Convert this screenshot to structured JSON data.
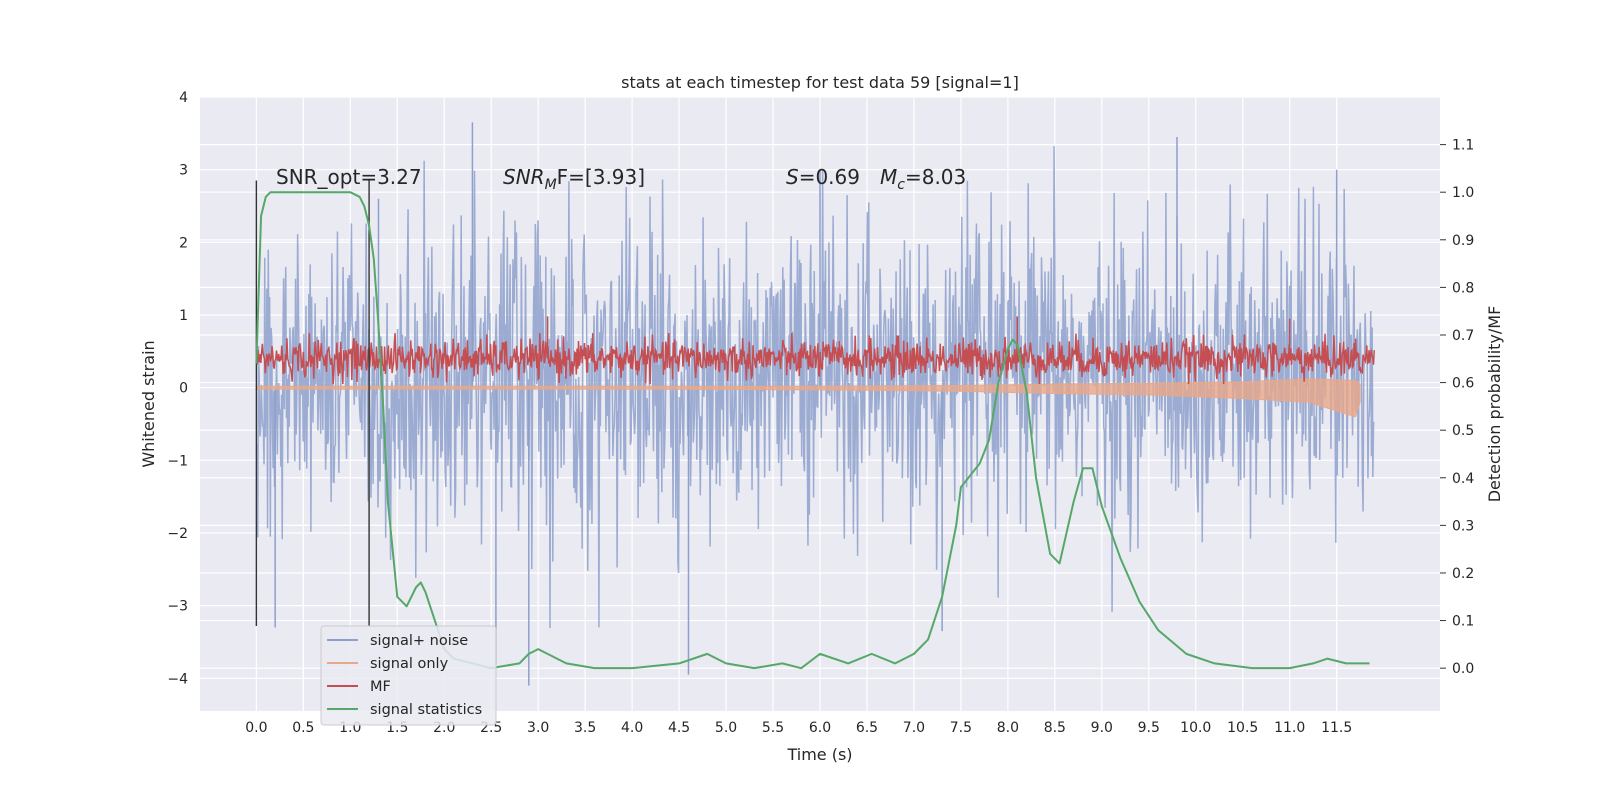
{
  "chart_data": {
    "type": "line",
    "title": "stats at each timestep for test data 59 [signal=1]",
    "xlabel": "Time (s)",
    "ylabel": "Whitened strain",
    "y2label": "Detection probability/MF",
    "xlim": [
      -0.6,
      12.6
    ],
    "ylim": [
      -4.45,
      4.0
    ],
    "y2lim": [
      -0.09,
      1.2
    ],
    "xticks": [
      0.0,
      0.5,
      1.0,
      1.5,
      2.0,
      2.5,
      3.0,
      3.5,
      4.0,
      4.5,
      5.0,
      5.5,
      6.0,
      6.5,
      7.0,
      7.5,
      8.0,
      8.5,
      9.0,
      9.5,
      10.0,
      10.5,
      11.0,
      11.5
    ],
    "xtick_labels": [
      "0.0",
      "0.5",
      "1.0",
      "1.5",
      "2.0",
      "2.5",
      "3.0",
      "3.5",
      "4.0",
      "4.5",
      "5.0",
      "5.5",
      "6.0",
      "6.5",
      "7.0",
      "7.5",
      "8.0",
      "8.5",
      "9.0",
      "9.5",
      "10.0",
      "10.5",
      "11.0",
      "11.5"
    ],
    "yticks": [
      -4,
      -3,
      -2,
      -1,
      0,
      1,
      2,
      3,
      4
    ],
    "ytick_labels": [
      "−4",
      "−3",
      "−2",
      "−1",
      "0",
      "1",
      "2",
      "3",
      "4"
    ],
    "y2ticks": [
      0.0,
      0.1,
      0.2,
      0.3,
      0.4,
      0.5,
      0.6,
      0.7,
      0.8,
      0.9,
      1.0,
      1.1
    ],
    "y2tick_labels": [
      "0.0",
      "0.1",
      "0.2",
      "0.3",
      "0.4",
      "0.5",
      "0.6",
      "0.7",
      "0.8",
      "0.9",
      "1.0",
      "1.1"
    ],
    "grid": true,
    "legend_position": "bottom-left",
    "annotations": {
      "snr_opt": "SNR_opt=3.27",
      "snr_mf_sym": "SNR",
      "snr_mf_sub": "M",
      "snr_mf_rest": "F=[3.93]",
      "s_sym": "S",
      "s_rest": "=0.69",
      "mc_sym": "M",
      "mc_sub": "c",
      "mc_rest": "=8.03"
    },
    "vertical_markers": [
      0.0,
      1.2
    ],
    "series": [
      {
        "name": "signal+ noise",
        "color": "#8da0cb",
        "axis": "left",
        "style": "band",
        "x": [
          0.0,
          1.0,
          2.0,
          3.0,
          4.0,
          5.0,
          6.0,
          7.0,
          8.0,
          9.0,
          10.0,
          11.0,
          11.9
        ],
        "typical_min": [
          -1.6,
          -1.6,
          -1.8,
          -1.7,
          -1.7,
          -1.6,
          -1.6,
          -1.6,
          -1.7,
          -1.6,
          -1.6,
          -1.7,
          -1.6
        ],
        "typical_max": [
          1.8,
          1.9,
          2.0,
          2.0,
          1.9,
          1.9,
          1.9,
          1.9,
          2.0,
          2.0,
          2.0,
          2.0,
          1.9
        ],
        "peaks": [
          [
            0.2,
            -3.3
          ],
          [
            1.3,
            2.6
          ],
          [
            2.3,
            3.65
          ],
          [
            2.55,
            -3.8
          ],
          [
            2.9,
            -4.1
          ],
          [
            4.6,
            -3.95
          ],
          [
            6.0,
            3.0
          ],
          [
            7.3,
            -3.35
          ],
          [
            9.8,
            3.45
          ],
          [
            11.5,
            3.0
          ]
        ]
      },
      {
        "name": "signal only",
        "color": "#e8a88a",
        "axis": "left",
        "style": "band",
        "x": [
          0.0,
          2.0,
          4.0,
          6.0,
          7.5,
          8.5,
          9.5,
          10.5,
          11.2,
          11.7,
          11.75
        ],
        "min": [
          -0.02,
          -0.02,
          -0.02,
          -0.03,
          -0.05,
          -0.08,
          -0.1,
          -0.15,
          -0.2,
          -0.4,
          -0.2
        ],
        "max": [
          0.02,
          0.02,
          0.02,
          0.02,
          0.03,
          0.05,
          0.06,
          0.08,
          0.12,
          0.1,
          0.05
        ]
      },
      {
        "name": "MF",
        "color": "#c44e52",
        "axis": "left",
        "style": "band",
        "x": [
          0.0,
          11.9
        ],
        "typical_min": [
          0.05,
          0.05
        ],
        "typical_max": [
          0.75,
          0.75
        ],
        "peaks": [
          [
            3.1,
            0.98
          ],
          [
            8.1,
            0.98
          ],
          [
            11.0,
            0.95
          ]
        ]
      },
      {
        "name": "signal statistics",
        "color": "#55a868",
        "axis": "right",
        "style": "line",
        "x": [
          0.0,
          0.05,
          0.1,
          0.15,
          0.25,
          0.5,
          0.8,
          1.0,
          1.1,
          1.15,
          1.2,
          1.25,
          1.3,
          1.35,
          1.4,
          1.5,
          1.6,
          1.7,
          1.75,
          1.8,
          1.9,
          2.0,
          2.1,
          2.3,
          2.5,
          2.8,
          2.9,
          3.0,
          3.1,
          3.3,
          3.6,
          4.0,
          4.5,
          4.8,
          5.0,
          5.3,
          5.6,
          5.8,
          6.0,
          6.3,
          6.55,
          6.8,
          7.0,
          7.15,
          7.3,
          7.45,
          7.5,
          7.7,
          7.8,
          7.9,
          8.0,
          8.05,
          8.1,
          8.2,
          8.3,
          8.45,
          8.55,
          8.7,
          8.8,
          8.9,
          9.0,
          9.2,
          9.4,
          9.6,
          9.9,
          10.2,
          10.6,
          11.0,
          11.25,
          11.4,
          11.6,
          11.85
        ],
        "y": [
          0.64,
          0.95,
          0.99,
          1.0,
          1.0,
          1.0,
          1.0,
          1.0,
          0.99,
          0.97,
          0.93,
          0.86,
          0.72,
          0.55,
          0.35,
          0.15,
          0.13,
          0.17,
          0.18,
          0.16,
          0.1,
          0.04,
          0.02,
          0.01,
          0.0,
          0.01,
          0.03,
          0.04,
          0.03,
          0.01,
          0.0,
          0.0,
          0.01,
          0.03,
          0.01,
          0.0,
          0.01,
          0.0,
          0.03,
          0.01,
          0.03,
          0.01,
          0.03,
          0.06,
          0.15,
          0.3,
          0.38,
          0.43,
          0.48,
          0.6,
          0.67,
          0.69,
          0.68,
          0.58,
          0.4,
          0.24,
          0.22,
          0.35,
          0.42,
          0.42,
          0.34,
          0.23,
          0.14,
          0.08,
          0.03,
          0.01,
          0.0,
          0.0,
          0.01,
          0.02,
          0.01,
          0.01
        ]
      }
    ]
  }
}
